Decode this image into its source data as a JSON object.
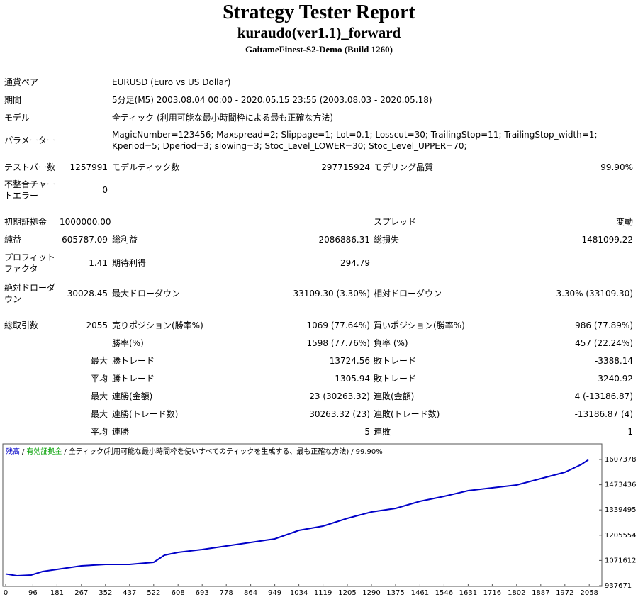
{
  "header": {
    "title": "Strategy Tester Report",
    "subtitle": "kuraudo(ver1.1)_forward",
    "server": "GaitameFinest-S2-Demo (Build 1260)"
  },
  "info": [
    {
      "label": "通貨ペア",
      "value": "EURUSD (Euro vs US Dollar)"
    },
    {
      "label": "期間",
      "value": "5分足(M5) 2003.08.04 00:00 - 2020.05.15 23:55 (2003.08.03 - 2020.05.18)"
    },
    {
      "label": "モデル",
      "value": "全ティック (利用可能な最小時間枠による最も正確な方法)"
    },
    {
      "label": "パラメーター",
      "value": "MagicNumber=123456; Maxspread=2; Slippage=1; Lot=0.1; Losscut=30; TrailingStop=11; TrailingStop_width=1; Kperiod=5; Dperiod=3; slowing=3; Stoc_Level_LOWER=30; Stoc_Level_UPPER=70;"
    }
  ],
  "stats": [
    {
      "l1": "テストバー数",
      "v1": "1257991",
      "l2": "モデルティック数",
      "v2": "297715924",
      "l3": "モデリング品質",
      "v3": "99.90%"
    },
    {
      "l1": "不整合チャートエラー",
      "v1": "0"
    },
    {
      "l1": "初期証拠金",
      "v1": "1000000.00",
      "l3": "スプレッド",
      "v3": "変動"
    },
    {
      "l1": "純益",
      "v1": "605787.09",
      "l2": "総利益",
      "v2": "2086886.31",
      "l3": "総損失",
      "v3": "-1481099.22"
    },
    {
      "l1": "プロフィットファクタ",
      "v1": "1.41",
      "l2": "期待利得",
      "v2": "294.79"
    },
    {
      "l1": "絶対ドローダウン",
      "v1": "30028.45",
      "l2": "最大ドローダウン",
      "v2": "33109.30 (3.30%)",
      "l3": "相対ドローダウン",
      "v3": "3.30% (33109.30)"
    },
    {
      "l1": "総取引数",
      "v1": "2055",
      "l2": "売りポジション(勝率%)",
      "v2": "1069 (77.64%)",
      "l3": "買いポジション(勝率%)",
      "v3": "986 (77.89%)"
    },
    {
      "l2": "勝率(%)",
      "v2": "1598 (77.76%)",
      "l3": "負率 (%)",
      "v3": "457 (22.24%)"
    },
    {
      "v1": "最大",
      "l2": "勝トレード",
      "v2": "13724.56",
      "l3": "敗トレード",
      "v3": "-3388.14"
    },
    {
      "v1": "平均",
      "l2": "勝トレード",
      "v2": "1305.94",
      "l3": "敗トレード",
      "v3": "-3240.92"
    },
    {
      "v1": "最大",
      "l2": "連勝(金額)",
      "v2": "23 (30263.32)",
      "l3": "連敗(金額)",
      "v3": "4 (-13186.87)"
    },
    {
      "v1": "最大",
      "l2": "連勝(トレード数)",
      "v2": "30263.32 (23)",
      "l3": "連敗(トレード数)",
      "v3": "-13186.87 (4)"
    },
    {
      "v1": "平均",
      "l2": "連勝",
      "v2": "5",
      "l3": "連敗",
      "v3": "1"
    }
  ],
  "chart_data": {
    "type": "line",
    "legend": [
      {
        "name": "残高",
        "color": "#0000c8"
      },
      {
        "name": "有効証拠金",
        "color": "#00a000"
      }
    ],
    "legend_separator": "/",
    "model_note": "全ティック(利用可能な最小時間枠を使いすべてのティックを生成する、最も正確な方法)",
    "quality": "99.90%",
    "x": [
      0,
      40,
      90,
      130,
      181,
      267,
      352,
      437,
      522,
      560,
      608,
      693,
      778,
      864,
      949,
      1034,
      1119,
      1205,
      1290,
      1375,
      1461,
      1546,
      1631,
      1716,
      1802,
      1887,
      1972,
      2030,
      2055
    ],
    "series": [
      {
        "name": "残高",
        "color": "#0000c8",
        "values": [
          1000000,
          990345,
          994107,
          1012919,
          1024206,
          1043018,
          1050543,
          1050543,
          1061830,
          1099454,
          1114504,
          1129550,
          1148360,
          1167180,
          1185990,
          1231140,
          1253710,
          1295100,
          1329000,
          1347780,
          1385400,
          1411740,
          1441840,
          1456890,
          1471940,
          1505800,
          1539660,
          1581040,
          1605787
        ]
      }
    ],
    "xlim": [
      0,
      2100
    ],
    "xticks": [
      0,
      96,
      181,
      267,
      352,
      437,
      522,
      608,
      693,
      778,
      864,
      949,
      1034,
      1119,
      1205,
      1290,
      1375,
      1461,
      1546,
      1631,
      1716,
      1802,
      1887,
      1972,
      2058
    ],
    "ylim": [
      933900,
      1690150
    ],
    "yticks": [
      937671,
      1071612,
      1205554,
      1339495,
      1473436,
      1607378
    ]
  }
}
